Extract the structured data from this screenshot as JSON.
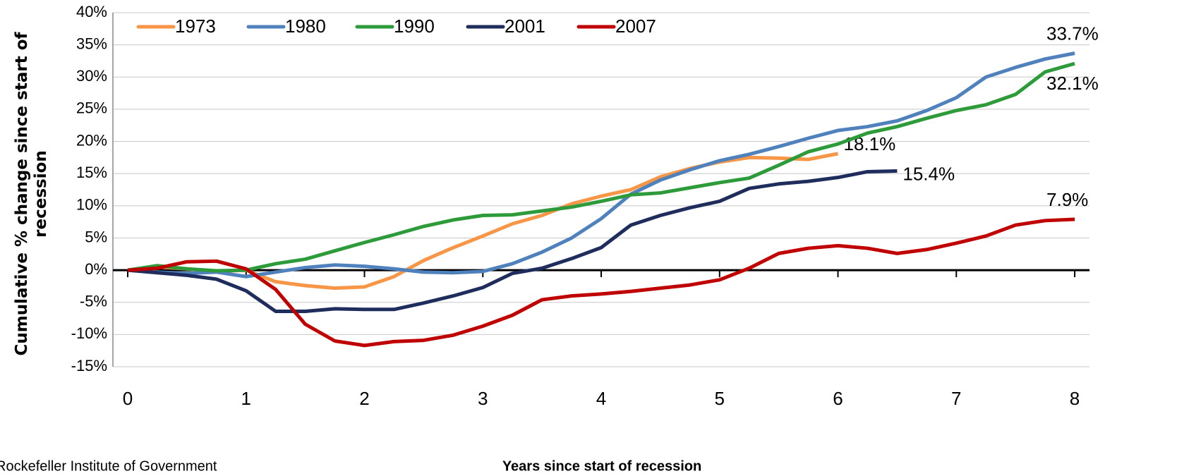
{
  "chart_data": {
    "type": "line",
    "xlabel": "Years since start of recession",
    "ylabel": "Cumulative % change since start of recession",
    "source": "Rockefeller Institute of Government",
    "x": [
      0,
      0.25,
      0.5,
      0.75,
      1,
      1.25,
      1.5,
      1.75,
      2,
      2.25,
      2.5,
      2.75,
      3,
      3.25,
      3.5,
      3.75,
      4,
      4.25,
      4.5,
      4.75,
      5,
      5.25,
      5.5,
      5.75,
      6,
      6.25,
      6.5,
      6.75,
      7,
      7.25,
      7.5,
      7.75,
      8
    ],
    "xlim": [
      -0.125,
      8.125
    ],
    "xticks": [
      0,
      1,
      2,
      3,
      4,
      5,
      6,
      7,
      8
    ],
    "ylim": [
      -15,
      40
    ],
    "yticks": [
      {
        "value": -15,
        "label": "-15%"
      },
      {
        "value": -10,
        "label": "-10%"
      },
      {
        "value": -5,
        "label": "-5%"
      },
      {
        "value": 0,
        "label": "0%"
      },
      {
        "value": 5,
        "label": "5%"
      },
      {
        "value": 10,
        "label": "10%"
      },
      {
        "value": 15,
        "label": "15%"
      },
      {
        "value": 20,
        "label": "20%"
      },
      {
        "value": 25,
        "label": "25%"
      },
      {
        "value": 30,
        "label": "30%"
      },
      {
        "value": 35,
        "label": "35%"
      },
      {
        "value": 40,
        "label": "40%"
      }
    ],
    "grid": true,
    "legend": "top-left",
    "series": [
      {
        "name": "1973",
        "color": "#f79646",
        "values": [
          0,
          0.5,
          0.2,
          -0.2,
          0,
          -1.8,
          -2.4,
          -2.8,
          -2.6,
          -1,
          1.5,
          3.5,
          5.3,
          7.2,
          8.5,
          10.3,
          11.5,
          12.5,
          14.5,
          15.8,
          16.8,
          17.5,
          17.4,
          17.2,
          18.1,
          null,
          null,
          null,
          null,
          null,
          null,
          null,
          null
        ],
        "value_labels": [
          null,
          null,
          null,
          null,
          null,
          null,
          null,
          null,
          null,
          null,
          null,
          null,
          null,
          null,
          null,
          null,
          null,
          null,
          null,
          null,
          null,
          null,
          null,
          null,
          "18.1%",
          null,
          null,
          null,
          null,
          null,
          null,
          null,
          null
        ]
      },
      {
        "name": "1980",
        "color": "#4f81bd",
        "values": [
          0,
          -0.3,
          -0.5,
          -0.3,
          -1,
          -0.3,
          0.4,
          0.8,
          0.6,
          0.2,
          -0.3,
          -0.4,
          -0.2,
          1,
          2.8,
          5,
          8,
          11.8,
          14,
          15.6,
          17,
          18,
          19.2,
          20.5,
          21.7,
          22.3,
          23.2,
          24.8,
          26.8,
          30,
          31.5,
          32.8,
          33.7
        ],
        "value_labels": [
          null,
          null,
          null,
          null,
          null,
          null,
          null,
          null,
          null,
          null,
          null,
          null,
          null,
          null,
          null,
          null,
          null,
          null,
          null,
          null,
          null,
          null,
          null,
          null,
          null,
          null,
          null,
          null,
          null,
          null,
          null,
          null,
          "33.7%"
        ]
      },
      {
        "name": "1990",
        "color": "#2e9b3a",
        "values": [
          0,
          0.7,
          0.2,
          -0.1,
          0,
          1,
          1.7,
          3,
          4.3,
          5.5,
          6.8,
          7.8,
          8.5,
          8.6,
          9.2,
          9.8,
          10.7,
          11.7,
          12,
          12.8,
          13.6,
          14.3,
          16.3,
          18.4,
          19.6,
          21.3,
          22.3,
          23.6,
          24.8,
          25.7,
          27.3,
          30.8,
          32.1
        ],
        "value_labels": [
          null,
          null,
          null,
          null,
          null,
          null,
          null,
          null,
          null,
          null,
          null,
          null,
          null,
          null,
          null,
          null,
          null,
          null,
          null,
          null,
          null,
          null,
          null,
          null,
          null,
          null,
          null,
          null,
          null,
          null,
          null,
          null,
          "32.1%"
        ]
      },
      {
        "name": "2001",
        "color": "#1f2d5c",
        "values": [
          0,
          -0.4,
          -0.8,
          -1.4,
          -3.2,
          -6.4,
          -6.4,
          -6,
          -6.1,
          -6.1,
          -5.1,
          -4,
          -2.7,
          -0.5,
          0.3,
          1.8,
          3.5,
          7,
          8.5,
          9.7,
          10.7,
          12.7,
          13.4,
          13.8,
          14.4,
          15.3,
          15.4,
          null,
          null,
          null,
          null,
          null,
          null
        ],
        "value_labels": [
          null,
          null,
          null,
          null,
          null,
          null,
          null,
          null,
          null,
          null,
          null,
          null,
          null,
          null,
          null,
          null,
          null,
          null,
          null,
          null,
          null,
          null,
          null,
          null,
          null,
          null,
          "15.4%",
          null,
          null,
          null,
          null,
          null,
          null
        ]
      },
      {
        "name": "2007",
        "color": "#c00000",
        "values": [
          0,
          0.3,
          1.3,
          1.4,
          0.2,
          -3,
          -8.4,
          -11,
          -11.7,
          -11.1,
          -10.9,
          -10.1,
          -8.7,
          -7,
          -4.6,
          -4,
          -3.7,
          -3.3,
          -2.8,
          -2.3,
          -1.5,
          0.3,
          2.6,
          3.4,
          3.8,
          3.4,
          2.6,
          3.2,
          4.2,
          5.3,
          7,
          7.7,
          7.9
        ],
        "value_labels": [
          null,
          null,
          null,
          null,
          null,
          null,
          null,
          null,
          null,
          null,
          null,
          null,
          null,
          null,
          null,
          null,
          null,
          null,
          null,
          null,
          null,
          null,
          null,
          null,
          null,
          null,
          null,
          null,
          null,
          null,
          null,
          null,
          "7.9%"
        ]
      }
    ]
  }
}
